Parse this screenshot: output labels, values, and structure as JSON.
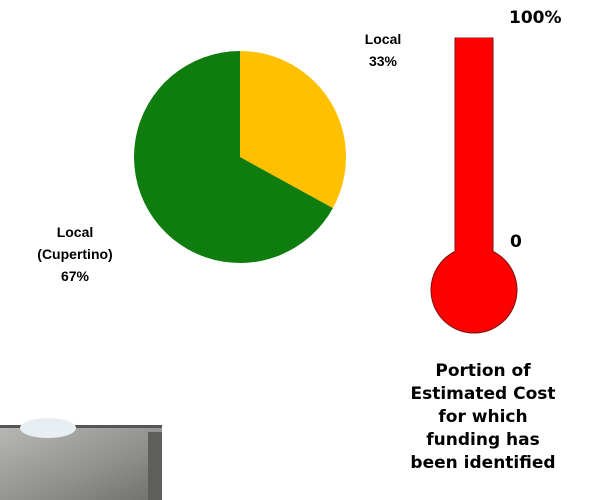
{
  "chart_data": [
    {
      "type": "pie",
      "categories": [
        "Local",
        "Local (Cupertino)"
      ],
      "values": [
        33,
        67
      ],
      "value_labels": [
        "33%",
        "67%"
      ],
      "colors": [
        "#ffc000",
        "#0e7d0e"
      ]
    },
    {
      "type": "thermometer",
      "value": 100,
      "ylim": [
        0,
        100
      ],
      "yticks": [
        0,
        {
          "value": 100,
          "label": "100%"
        }
      ],
      "color": "#ff0000",
      "caption": [
        "Portion of",
        "Estimated Cost",
        "for which",
        "funding has",
        "been identified"
      ]
    }
  ]
}
